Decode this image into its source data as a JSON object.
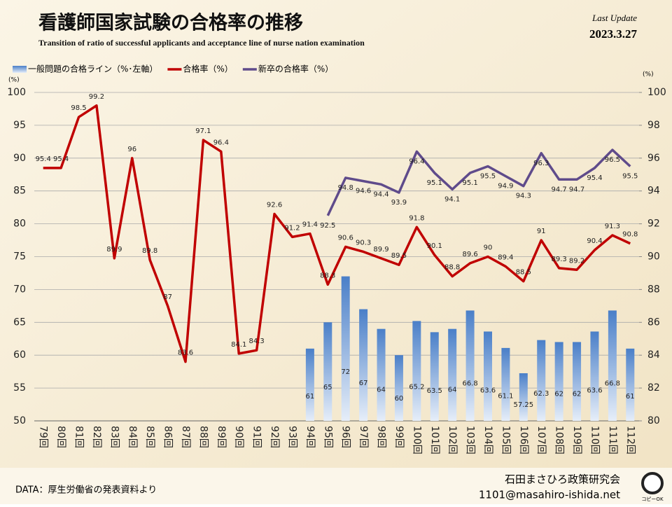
{
  "header": {
    "title": "看護師国家試験の合格率の推移",
    "subtitle": "Transition of ratio of successful applicants and acceptance line of nurse nation examination",
    "update_label": "Last Update",
    "update_date": "2023.3.27"
  },
  "chart_data": {
    "type": "combo",
    "categories": [
      "79回",
      "80回",
      "81回",
      "82回",
      "83回",
      "84回",
      "85回",
      "86回",
      "87回",
      "88回",
      "89回",
      "90回",
      "91回",
      "92回",
      "93回",
      "94回",
      "95回",
      "96回",
      "97回",
      "98回",
      "99回",
      "100回",
      "101回",
      "102回",
      "103回",
      "104回",
      "105回",
      "106回",
      "107回",
      "108回",
      "109回",
      "110回",
      "111回",
      "112回"
    ],
    "series": [
      {
        "name": "一般問題の合格ライン（%･左軸）",
        "type": "bar",
        "axis": "y",
        "color": "#4a7fc8",
        "values": [
          null,
          null,
          null,
          null,
          null,
          null,
          null,
          null,
          null,
          null,
          null,
          null,
          null,
          null,
          null,
          61,
          65,
          72,
          67,
          64,
          60,
          65.2,
          63.5,
          64,
          66.8,
          63.6,
          61.1,
          57.25,
          62.3,
          62,
          62,
          63.6,
          66.8,
          61
        ]
      },
      {
        "name": "合格率（%）",
        "type": "line",
        "axis": "y2",
        "color": "#c00000",
        "values": [
          95.4,
          95.4,
          98.5,
          99.2,
          89.9,
          96,
          89.8,
          87,
          83.6,
          97.1,
          96.4,
          84.1,
          84.3,
          92.6,
          91.2,
          91.4,
          88.3,
          90.6,
          90.3,
          89.9,
          89.5,
          91.8,
          90.1,
          88.8,
          89.6,
          90,
          89.4,
          88.5,
          91,
          89.3,
          89.2,
          90.4,
          91.3,
          90.8
        ]
      },
      {
        "name": "新卒の合格率（%）",
        "type": "line",
        "axis": "y2",
        "color": "#5f4b8b",
        "values": [
          null,
          null,
          null,
          null,
          null,
          null,
          null,
          null,
          null,
          null,
          null,
          null,
          null,
          null,
          null,
          null,
          92.5,
          94.8,
          94.6,
          94.4,
          93.9,
          96.4,
          95.1,
          94.1,
          95.1,
          95.5,
          94.9,
          94.3,
          96.3,
          94.7,
          94.7,
          95.4,
          96.5,
          95.5
        ]
      }
    ],
    "ylim": [
      50,
      100
    ],
    "yticks": [
      50,
      55,
      60,
      65,
      70,
      75,
      80,
      85,
      90,
      95,
      100
    ],
    "y2lim": [
      80,
      100
    ],
    "y2ticks": [
      80,
      82,
      84,
      86,
      88,
      90,
      92,
      94,
      96,
      98,
      100
    ],
    "y_unit": "(%)",
    "y2_unit": "(%)",
    "grid": true
  },
  "footer": {
    "source": "DATA：厚生労働省の発表資料より",
    "org": "石田まさひろ政策研究会",
    "email": "1101@masahiro-ishida.net",
    "logo": "コピーOK"
  }
}
